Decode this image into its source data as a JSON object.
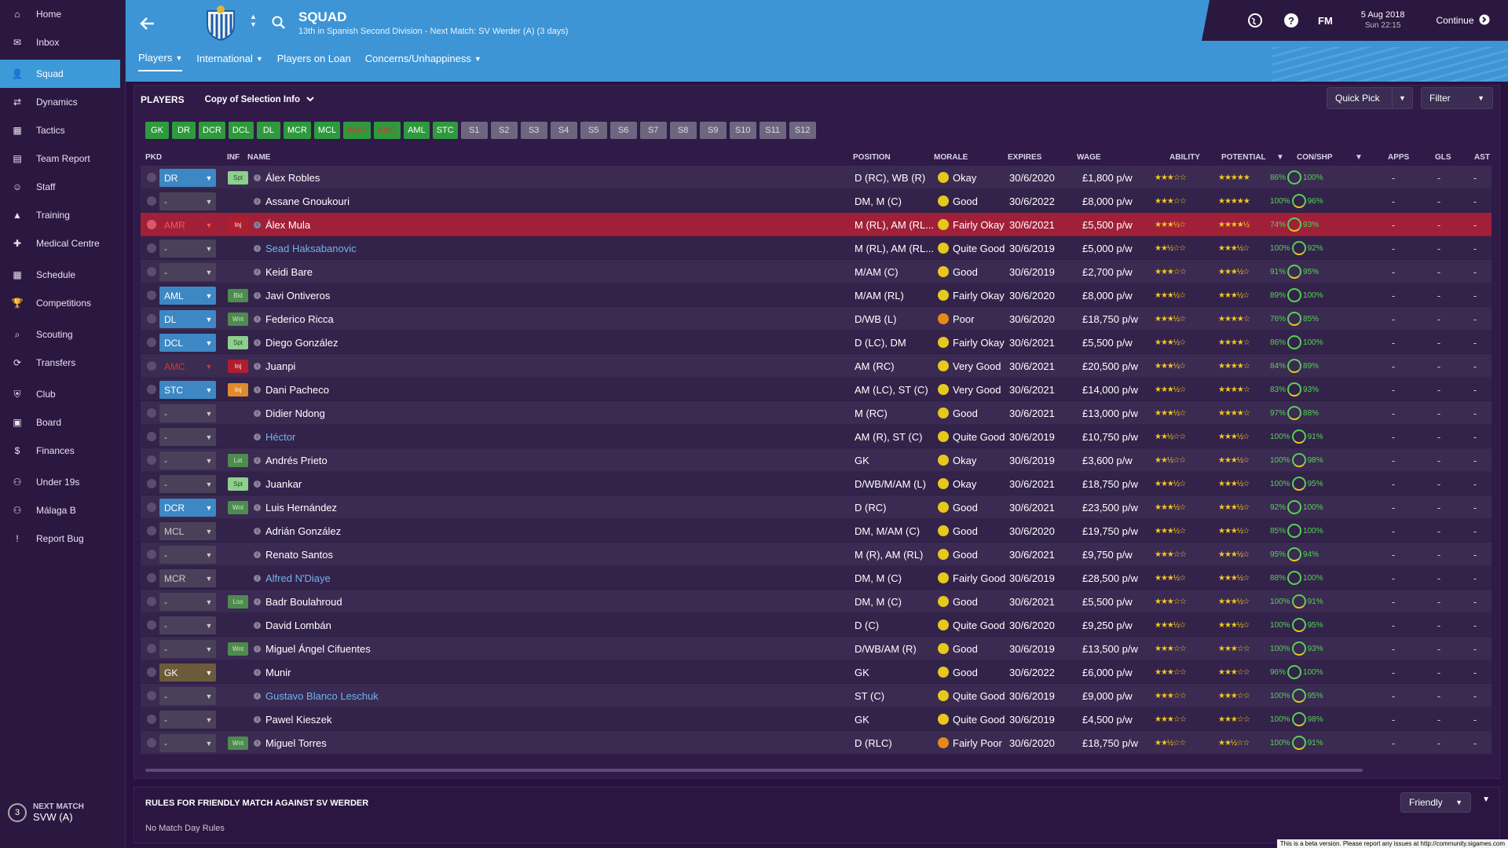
{
  "sidebar": {
    "items": [
      {
        "label": "Home",
        "icon": "home-icon"
      },
      {
        "label": "Inbox",
        "icon": "inbox-icon"
      },
      {
        "label": "Squad",
        "icon": "squad-icon",
        "active": true
      },
      {
        "label": "Dynamics",
        "icon": "dynamics-icon"
      },
      {
        "label": "Tactics",
        "icon": "tactics-icon"
      },
      {
        "label": "Team Report",
        "icon": "team-report-icon"
      },
      {
        "label": "Staff",
        "icon": "staff-icon"
      },
      {
        "label": "Training",
        "icon": "training-icon"
      },
      {
        "label": "Medical Centre",
        "icon": "medical-icon"
      },
      {
        "label": "Schedule",
        "icon": "schedule-icon"
      },
      {
        "label": "Competitions",
        "icon": "trophy-icon"
      },
      {
        "label": "Scouting",
        "icon": "scouting-icon"
      },
      {
        "label": "Transfers",
        "icon": "transfers-icon"
      },
      {
        "label": "Club",
        "icon": "club-icon"
      },
      {
        "label": "Board",
        "icon": "board-icon"
      },
      {
        "label": "Finances",
        "icon": "finances-icon"
      },
      {
        "label": "Under 19s",
        "icon": "under19-icon"
      },
      {
        "label": "Málaga B",
        "icon": "reserve-icon"
      },
      {
        "label": "Report Bug",
        "icon": "report-bug-icon"
      }
    ],
    "next_match": {
      "label": "NEXT MATCH",
      "team": "SVW (A)",
      "days": "3"
    }
  },
  "header": {
    "title": "SQUAD",
    "subtitle": "13th in Spanish Second Division - Next Match: SV Werder (A) (3 days)",
    "tabs": [
      {
        "label": "Players",
        "dropdown": true,
        "active": true
      },
      {
        "label": "International",
        "dropdown": true
      },
      {
        "label": "Players on Loan",
        "dropdown": false
      },
      {
        "label": "Concerns/Unhappiness",
        "dropdown": true
      }
    ],
    "date": "5 Aug 2018",
    "time": "Sun 22:15",
    "continue_label": "Continue",
    "fm_logo": "FM"
  },
  "panel": {
    "title": "PLAYERS",
    "view": "Copy of Selection Info",
    "quick_pick": "Quick Pick",
    "filter": "Filter",
    "position_buttons": [
      {
        "label": "GK",
        "state": "filled"
      },
      {
        "label": "DR",
        "state": "filled"
      },
      {
        "label": "DCR",
        "state": "filled"
      },
      {
        "label": "DCL",
        "state": "filled"
      },
      {
        "label": "DL",
        "state": "filled"
      },
      {
        "label": "MCR",
        "state": "filled"
      },
      {
        "label": "MCL",
        "state": "filled"
      },
      {
        "label": "AMR",
        "state": "warn"
      },
      {
        "label": "AMC",
        "state": "warn"
      },
      {
        "label": "AML",
        "state": "filled"
      },
      {
        "label": "STC",
        "state": "filled"
      },
      {
        "label": "S1",
        "state": "empty"
      },
      {
        "label": "S2",
        "state": "empty"
      },
      {
        "label": "S3",
        "state": "empty"
      },
      {
        "label": "S4",
        "state": "empty"
      },
      {
        "label": "S5",
        "state": "empty"
      },
      {
        "label": "S6",
        "state": "empty"
      },
      {
        "label": "S7",
        "state": "empty"
      },
      {
        "label": "S8",
        "state": "empty"
      },
      {
        "label": "S9",
        "state": "empty"
      },
      {
        "label": "S10",
        "state": "empty"
      },
      {
        "label": "S11",
        "state": "empty"
      },
      {
        "label": "S12",
        "state": "empty"
      }
    ],
    "columns": {
      "pkd": "PKD",
      "inf": "INF",
      "name": "NAME",
      "position": "POSITION",
      "morale": "MORALE",
      "expires": "EXPIRES",
      "wage": "WAGE",
      "ability": "ABILITY",
      "potential": "POTENTIAL",
      "conshp": "CON/SHP",
      "apps": "APPS",
      "gls": "GLS",
      "ast": "AST"
    }
  },
  "players": [
    {
      "pkd": "DR",
      "pkd_state": "set",
      "inf": "Spt",
      "inf_class": "spt",
      "name": "Álex Robles",
      "loan": false,
      "position": "D (RC), WB (R)",
      "morale": "Okay",
      "expires": "30/6/2020",
      "wage": "£1,800 p/w",
      "ability": "★★★☆☆",
      "potential": "★★★★★",
      "con": "86%",
      "shp": "100%",
      "apps": "-",
      "gls": "-",
      "ast": "-"
    },
    {
      "pkd": "-",
      "pkd_state": "none",
      "inf": "",
      "inf_class": "none",
      "name": "Assane Gnoukouri",
      "loan": false,
      "position": "DM, M (C)",
      "morale": "Good",
      "expires": "30/6/2022",
      "wage": "£8,000 p/w",
      "ability": "★★★☆☆",
      "potential": "★★★★★",
      "con": "100%",
      "shp": "96%",
      "apps": "-",
      "gls": "-",
      "ast": "-"
    },
    {
      "pkd": "AMR",
      "pkd_state": "inj",
      "inf": "Inj",
      "inf_class": "inj",
      "name": "Álex Mula",
      "loan": false,
      "position": "M (RL), AM (RL...",
      "morale": "Fairly Okay",
      "expires": "30/6/2021",
      "wage": "£5,500 p/w",
      "ability": "★★★½☆",
      "potential": "★★★★½",
      "con": "74%",
      "shp": "93%",
      "apps": "-",
      "gls": "-",
      "ast": "-",
      "highlight": true
    },
    {
      "pkd": "-",
      "pkd_state": "none",
      "inf": "",
      "inf_class": "none",
      "name": "Sead Haksabanovic",
      "loan": true,
      "position": "M (RL), AM (RL...",
      "morale": "Quite Good",
      "expires": "30/6/2019",
      "wage": "£5,000 p/w",
      "ability": "★★½☆☆",
      "potential": "★★★½☆",
      "con": "100%",
      "shp": "92%",
      "apps": "-",
      "gls": "-",
      "ast": "-"
    },
    {
      "pkd": "-",
      "pkd_state": "none",
      "inf": "",
      "inf_class": "none",
      "name": "Keidi Bare",
      "loan": false,
      "position": "M/AM (C)",
      "morale": "Good",
      "expires": "30/6/2019",
      "wage": "£2,700 p/w",
      "ability": "★★★☆☆",
      "potential": "★★★½☆",
      "con": "91%",
      "shp": "95%",
      "apps": "-",
      "gls": "-",
      "ast": "-"
    },
    {
      "pkd": "AML",
      "pkd_state": "set",
      "inf": "Bid",
      "inf_class": "bid",
      "name": "Javi Ontiveros",
      "loan": false,
      "position": "M/AM (RL)",
      "morale": "Fairly Okay",
      "expires": "30/6/2020",
      "wage": "£8,000 p/w",
      "ability": "★★★½☆",
      "potential": "★★★½☆",
      "con": "89%",
      "shp": "100%",
      "apps": "-",
      "gls": "-",
      "ast": "-"
    },
    {
      "pkd": "DL",
      "pkd_state": "set",
      "inf": "Wnt",
      "inf_class": "wnt",
      "name": "Federico Ricca",
      "loan": false,
      "position": "D/WB (L)",
      "morale": "Poor",
      "morale_class": "poor",
      "expires": "30/6/2020",
      "wage": "£18,750 p/w",
      "ability": "★★★½☆",
      "potential": "★★★★☆",
      "con": "76%",
      "shp": "85%",
      "apps": "-",
      "gls": "-",
      "ast": "-"
    },
    {
      "pkd": "DCL",
      "pkd_state": "set",
      "inf": "Spt",
      "inf_class": "spt",
      "name": "Diego González",
      "loan": false,
      "position": "D (LC), DM",
      "morale": "Fairly Okay",
      "expires": "30/6/2021",
      "wage": "£5,500 p/w",
      "ability": "★★★½☆",
      "potential": "★★★★☆",
      "con": "86%",
      "shp": "100%",
      "apps": "-",
      "gls": "-",
      "ast": "-"
    },
    {
      "pkd": "AMC",
      "pkd_state": "inj",
      "inf": "Inj",
      "inf_class": "inj",
      "name": "Juanpi",
      "loan": false,
      "position": "AM (RC)",
      "morale": "Very Good",
      "expires": "30/6/2021",
      "wage": "£20,500 p/w",
      "ability": "★★★½☆",
      "potential": "★★★★☆",
      "con": "84%",
      "shp": "89%",
      "apps": "-",
      "gls": "-",
      "ast": "-"
    },
    {
      "pkd": "STC",
      "pkd_state": "set",
      "inf": "Inj",
      "inf_class": "injo",
      "name": "Dani Pacheco",
      "loan": false,
      "position": "AM (LC), ST (C)",
      "morale": "Very Good",
      "expires": "30/6/2021",
      "wage": "£14,000 p/w",
      "ability": "★★★½☆",
      "potential": "★★★★☆",
      "con": "83%",
      "shp": "93%",
      "apps": "-",
      "gls": "-",
      "ast": "-"
    },
    {
      "pkd": "-",
      "pkd_state": "none",
      "inf": "",
      "inf_class": "none",
      "name": "Didier Ndong",
      "loan": false,
      "position": "M (RC)",
      "morale": "Good",
      "expires": "30/6/2021",
      "wage": "£13,000 p/w",
      "ability": "★★★½☆",
      "potential": "★★★★☆",
      "con": "97%",
      "shp": "88%",
      "apps": "-",
      "gls": "-",
      "ast": "-"
    },
    {
      "pkd": "-",
      "pkd_state": "none",
      "inf": "",
      "inf_class": "none",
      "name": "Héctor",
      "loan": true,
      "position": "AM (R), ST (C)",
      "morale": "Quite Good",
      "expires": "30/6/2019",
      "wage": "£10,750 p/w",
      "ability": "★★½☆☆",
      "potential": "★★★½☆",
      "con": "100%",
      "shp": "91%",
      "apps": "-",
      "gls": "-",
      "ast": "-"
    },
    {
      "pkd": "-",
      "pkd_state": "none",
      "inf": "Lst",
      "inf_class": "lst",
      "name": "Andrés Prieto",
      "loan": false,
      "position": "GK",
      "morale": "Okay",
      "expires": "30/6/2019",
      "wage": "£3,600 p/w",
      "ability": "★★½☆☆",
      "potential": "★★★½☆",
      "con": "100%",
      "shp": "98%",
      "apps": "-",
      "gls": "-",
      "ast": "-"
    },
    {
      "pkd": "-",
      "pkd_state": "none",
      "inf": "Spt",
      "inf_class": "spt",
      "name": "Juankar",
      "loan": false,
      "position": "D/WB/M/AM (L)",
      "morale": "Okay",
      "expires": "30/6/2021",
      "wage": "£18,750 p/w",
      "ability": "★★★½☆",
      "potential": "★★★½☆",
      "con": "100%",
      "shp": "95%",
      "apps": "-",
      "gls": "-",
      "ast": "-"
    },
    {
      "pkd": "DCR",
      "pkd_state": "set",
      "inf": "Wnt",
      "inf_class": "wnt",
      "name": "Luis Hernández",
      "loan": false,
      "position": "D (RC)",
      "morale": "Good",
      "expires": "30/6/2021",
      "wage": "£23,500 p/w",
      "ability": "★★★½☆",
      "potential": "★★★½☆",
      "con": "92%",
      "shp": "100%",
      "apps": "-",
      "gls": "-",
      "ast": "-"
    },
    {
      "pkd": "MCL",
      "pkd_state": "none",
      "inf": "",
      "inf_class": "none",
      "name": "Adrián González",
      "loan": false,
      "position": "DM, M/AM (C)",
      "morale": "Good",
      "expires": "30/6/2020",
      "wage": "£19,750 p/w",
      "ability": "★★★½☆",
      "potential": "★★★½☆",
      "con": "85%",
      "shp": "100%",
      "apps": "-",
      "gls": "-",
      "ast": "-"
    },
    {
      "pkd": "-",
      "pkd_state": "none",
      "inf": "",
      "inf_class": "none",
      "name": "Renato Santos",
      "loan": false,
      "position": "M (R), AM (RL)",
      "morale": "Good",
      "expires": "30/6/2021",
      "wage": "£9,750 p/w",
      "ability": "★★★☆☆",
      "potential": "★★★½☆",
      "con": "95%",
      "shp": "94%",
      "apps": "-",
      "gls": "-",
      "ast": "-"
    },
    {
      "pkd": "MCR",
      "pkd_state": "none",
      "inf": "",
      "inf_class": "none",
      "name": "Alfred N'Diaye",
      "loan": true,
      "position": "DM, M (C)",
      "morale": "Fairly Good",
      "expires": "30/6/2019",
      "wage": "£28,500 p/w",
      "ability": "★★★½☆",
      "potential": "★★★½☆",
      "con": "88%",
      "shp": "100%",
      "apps": "-",
      "gls": "-",
      "ast": "-"
    },
    {
      "pkd": "-",
      "pkd_state": "none",
      "inf": "Los",
      "inf_class": "los",
      "name": "Badr Boulahroud",
      "loan": false,
      "position": "DM, M (C)",
      "morale": "Good",
      "expires": "30/6/2021",
      "wage": "£5,500 p/w",
      "ability": "★★★☆☆",
      "potential": "★★★½☆",
      "con": "100%",
      "shp": "91%",
      "apps": "-",
      "gls": "-",
      "ast": "-"
    },
    {
      "pkd": "-",
      "pkd_state": "none",
      "inf": "",
      "inf_class": "none",
      "name": "David Lombán",
      "loan": false,
      "position": "D (C)",
      "morale": "Quite Good",
      "expires": "30/6/2020",
      "wage": "£9,250 p/w",
      "ability": "★★★½☆",
      "potential": "★★★½☆",
      "con": "100%",
      "shp": "95%",
      "apps": "-",
      "gls": "-",
      "ast": "-"
    },
    {
      "pkd": "-",
      "pkd_state": "none",
      "inf": "Wnt",
      "inf_class": "wnt",
      "name": "Miguel Ángel Cifuentes",
      "loan": false,
      "position": "D/WB/AM (R)",
      "morale": "Good",
      "expires": "30/6/2019",
      "wage": "£13,500 p/w",
      "ability": "★★★☆☆",
      "potential": "★★★☆☆",
      "con": "100%",
      "shp": "93%",
      "apps": "-",
      "gls": "-",
      "ast": "-"
    },
    {
      "pkd": "GK",
      "pkd_state": "gk",
      "inf": "",
      "inf_class": "none",
      "name": "Munir",
      "loan": false,
      "position": "GK",
      "morale": "Good",
      "expires": "30/6/2022",
      "wage": "£6,000 p/w",
      "ability": "★★★☆☆",
      "potential": "★★★☆☆",
      "con": "96%",
      "shp": "100%",
      "apps": "-",
      "gls": "-",
      "ast": "-"
    },
    {
      "pkd": "-",
      "pkd_state": "none",
      "inf": "",
      "inf_class": "none",
      "name": "Gustavo Blanco Leschuk",
      "loan": true,
      "position": "ST (C)",
      "morale": "Quite Good",
      "expires": "30/6/2019",
      "wage": "£9,000 p/w",
      "ability": "★★★☆☆",
      "potential": "★★★☆☆",
      "con": "100%",
      "shp": "95%",
      "apps": "-",
      "gls": "-",
      "ast": "-"
    },
    {
      "pkd": "-",
      "pkd_state": "none",
      "inf": "",
      "inf_class": "none",
      "name": "Pawel Kieszek",
      "loan": false,
      "position": "GK",
      "morale": "Quite Good",
      "expires": "30/6/2019",
      "wage": "£4,500 p/w",
      "ability": "★★★☆☆",
      "potential": "★★★☆☆",
      "con": "100%",
      "shp": "98%",
      "apps": "-",
      "gls": "-",
      "ast": "-"
    },
    {
      "pkd": "-",
      "pkd_state": "none",
      "inf": "Wnt",
      "inf_class": "wnt",
      "name": "Miguel Torres",
      "loan": false,
      "position": "D (RLC)",
      "morale": "Fairly Poor",
      "morale_class": "poor",
      "expires": "30/6/2020",
      "wage": "£18,750 p/w",
      "ability": "★★½☆☆",
      "potential": "★★½☆☆",
      "con": "100%",
      "shp": "91%",
      "apps": "-",
      "gls": "-",
      "ast": "-"
    }
  ],
  "rules": {
    "title": "RULES FOR FRIENDLY MATCH AGAINST SV WERDER",
    "body": "No Match Day Rules",
    "dropdown": "Friendly"
  },
  "beta_notice": "This is a beta version. Please report any issues at http://community.sigames.com",
  "colors": {
    "accent": "#3d95d6",
    "sidebar": "#2b1841",
    "highlight": "#a0203a",
    "positive": "#57d157",
    "star": "#f2c81c"
  }
}
